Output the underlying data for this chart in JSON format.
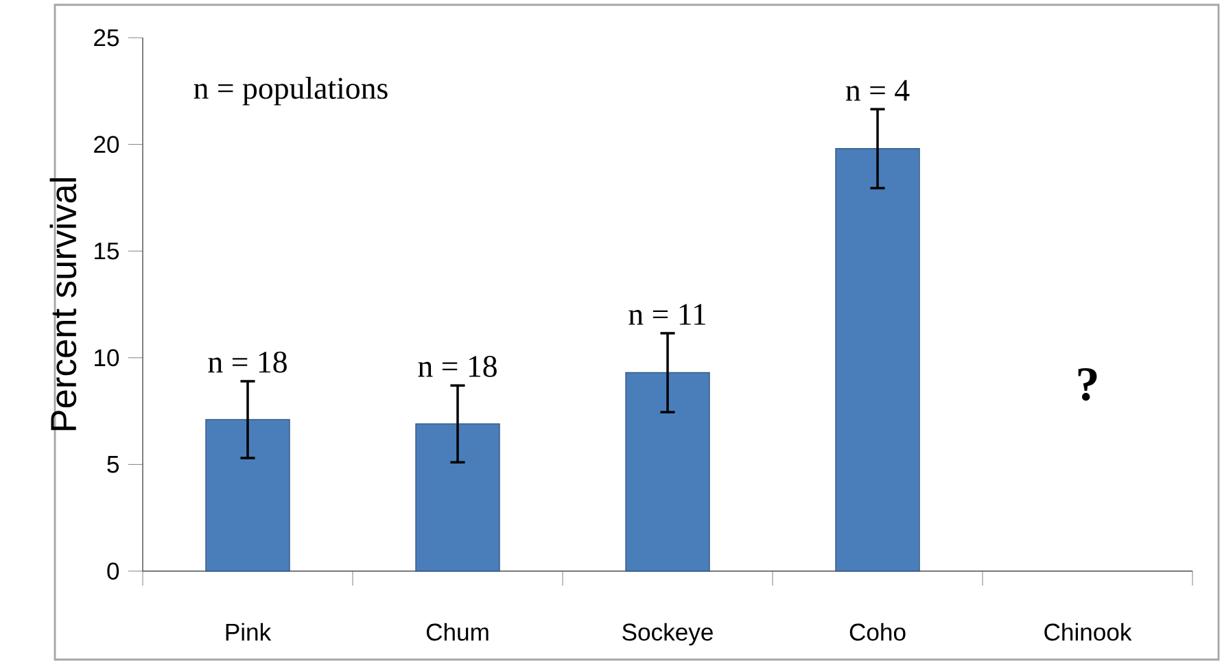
{
  "chart_data": {
    "type": "bar",
    "ylabel": "Percent survival",
    "categories": [
      "Pink",
      "Chum",
      "Sockeye",
      "Coho",
      "Chinook"
    ],
    "values": [
      7.1,
      6.9,
      9.3,
      19.8,
      null
    ],
    "errors": [
      1.8,
      1.8,
      1.85,
      1.85,
      null
    ],
    "color": "#4a7ebb",
    "ylim": [
      0,
      25
    ],
    "yticks": [
      0,
      5,
      10,
      15,
      20,
      25
    ],
    "grid": false,
    "annotations": [
      "n  = populations",
      "n  = 18",
      "n  = 18",
      "n  = 11",
      "n  = 4",
      "?"
    ]
  }
}
